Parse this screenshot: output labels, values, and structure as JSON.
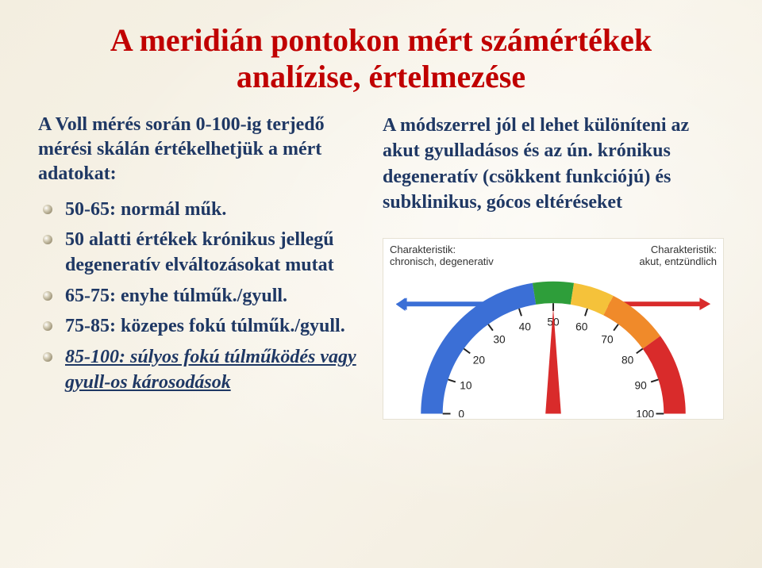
{
  "title_line1": "A meridián pontokon mért számértékek",
  "title_line2": "analízise, értelmezése",
  "left": {
    "intro": "A Voll mérés során 0-100-ig terjedő mérési skálán értékelhetjük a mért adatokat:",
    "items": [
      {
        "text": "50-65: normál műk.",
        "style": "plain"
      },
      {
        "text": "50 alatti értékek krónikus jellegű degeneratív elváltozásokat mutat",
        "style": "plain"
      },
      {
        "text": "65-75: enyhe túlműk./gyull.",
        "style": "plain"
      },
      {
        "text": "75-85: közepes fokú túlműk./gyull.",
        "style": "plain"
      },
      {
        "text": "85-100: súlyos fokú túlműködés vagy gyull-os károsodások",
        "style": "italic-underline"
      }
    ]
  },
  "right": {
    "paragraph": "A módszerrel jól el lehet különíteni az akut gyulladásos és az ún. krónikus degeneratív (csökkent funkciójú) és subklinikus, gócos eltéréseket"
  },
  "gauge": {
    "left_label_title": "Charakteristik:",
    "left_label_sub": "chronisch, degenerativ",
    "right_label_title": "Charakteristik:",
    "right_label_sub": "akut, entzündlich",
    "ticks": [
      "0",
      "10",
      "20",
      "30",
      "40",
      "50",
      "60",
      "70",
      "80",
      "90",
      "100"
    ],
    "bands": [
      {
        "from": 0,
        "to": 45,
        "color": "#3b6fd6"
      },
      {
        "from": 45,
        "to": 55,
        "color": "#2e9e3a"
      },
      {
        "from": 55,
        "to": 65,
        "color": "#f5c23a"
      },
      {
        "from": 65,
        "to": 80,
        "color": "#f08a2a"
      },
      {
        "from": 80,
        "to": 100,
        "color": "#d92b2b"
      }
    ],
    "arrow_left_color": "#3b6fd6",
    "arrow_right_color": "#d92b2b",
    "needle_color": "#d92b2b",
    "needle_value": 50,
    "tick_font": 14,
    "background": "#ffffff"
  },
  "colors": {
    "title": "#c00000",
    "body": "#1f3864"
  }
}
